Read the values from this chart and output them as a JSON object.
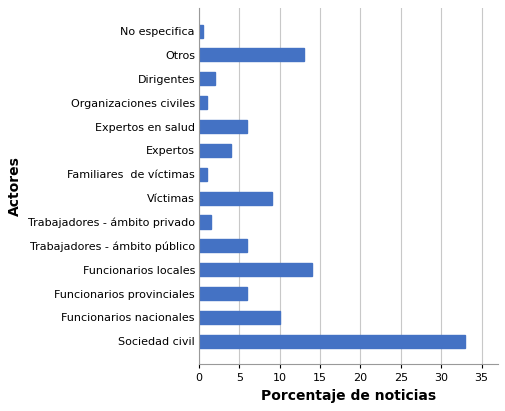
{
  "categories": [
    "Sociedad civil",
    "Funcionarios nacionales",
    "Funcionarios provinciales",
    "Funcionarios locales",
    "Trabajadores - ámbito público",
    "Trabajadores - ámbito privado",
    "Víctimas",
    "Familiares  de víctimas",
    "Expertos",
    "Expertos en salud",
    "Organizaciones civiles",
    "Dirigentes",
    "Otros",
    "No especifica"
  ],
  "values": [
    33.0,
    10.0,
    6.0,
    14.0,
    6.0,
    1.5,
    9.0,
    1.0,
    4.0,
    6.0,
    1.0,
    2.0,
    13.0,
    0.5
  ],
  "bar_color": "#4472C4",
  "xlabel": "Porcentaje de noticias",
  "ylabel": "Actores",
  "xlim": [
    0,
    37
  ],
  "xticks": [
    0,
    5,
    10,
    15,
    20,
    25,
    30,
    35
  ],
  "background_color": "#ffffff",
  "bar_height": 0.55,
  "grid_color": "#c8c8c8",
  "xlabel_fontsize": 10,
  "ylabel_fontsize": 10,
  "tick_fontsize": 8,
  "label_fontsize": 8
}
